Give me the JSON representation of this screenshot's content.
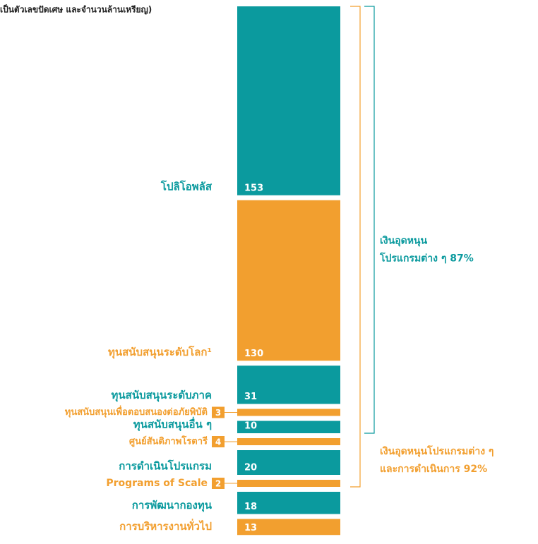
{
  "chart_data": {
    "type": "stacked_column",
    "subtitle": "เป็นตัวเลขปัดเศษ และจำนวนล้านเหรียญ)",
    "categories": [
      "โปลิโอพลัส",
      "ทุนสนับสนุนระดับโลก¹",
      "ทุนสนับสนุนระดับภาค",
      "ทุนสนับสนุนเพื่อตอบสนองต่อภัยพิบัติ",
      "ทุนสนับสนุนอื่น ๆ",
      "ศูนย์สันติภาพโรตารี",
      "การดำเนินโปรแกรม",
      "Programs of Scale",
      "การพัฒนากองทุน",
      "การบริหารงานทั่วไป"
    ],
    "values": [
      153,
      130,
      31,
      3,
      10,
      4,
      20,
      2,
      18,
      13
    ],
    "colors": [
      "#0b9a9e",
      "#f29f2f",
      "#0b9a9e",
      "#f29f2f",
      "#0b9a9e",
      "#f29f2f",
      "#0b9a9e",
      "#f29f2f",
      "#0b9a9e",
      "#f29f2f"
    ],
    "annotations": [
      {
        "lines": [
          "เงินอุดหนุน",
          "โปรแกรมต่าง ๆ 87%"
        ],
        "color": "#0b9a9e"
      },
      {
        "lines": [
          "เงินอุดหนุนโปรแกรมต่าง ๆ",
          "และการดำเนินการ 92%"
        ],
        "color": "#f29f2f"
      }
    ]
  }
}
